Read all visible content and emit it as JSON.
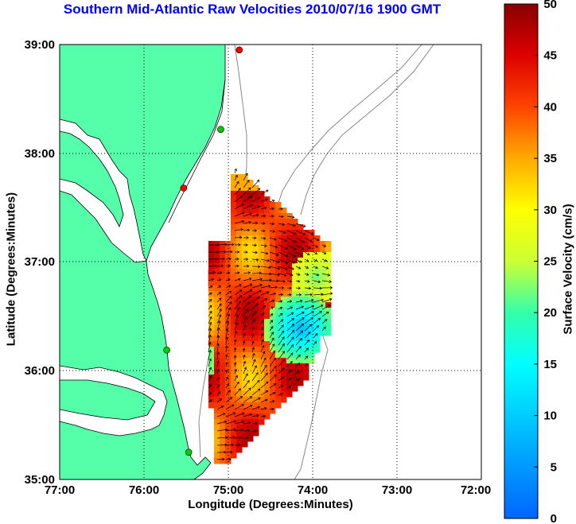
{
  "title": "Southern Mid-Atlantic Raw Velocities 2010/07/16 1900 GMT",
  "xlabel": "Longitude (Degrees:Minutes)",
  "ylabel": "Latitude (Degrees:Minutes)",
  "colorbar": {
    "label": "Surface Velocity (cm/s)",
    "ticks": [
      "0",
      "5",
      "10",
      "15",
      "20",
      "25",
      "30",
      "35",
      "40",
      "45",
      "50"
    ],
    "range": [
      0,
      50
    ]
  },
  "map": {
    "x_ticks": [
      "77:00",
      "76:00",
      "75:00",
      "74:00",
      "73:00",
      "72:00"
    ],
    "y_ticks": [
      "39:00",
      "38:00",
      "37:00",
      "36:00",
      "35:00"
    ],
    "lon_range": [
      -77,
      -72
    ],
    "lat_range": [
      35,
      39
    ],
    "land_color": "#55ffaa",
    "grid": "dotted",
    "stations": [
      {
        "lon": -74.87,
        "lat": 38.95,
        "color": "#ff0000"
      },
      {
        "lon": -75.09,
        "lat": 38.22,
        "color": "#00cc00"
      },
      {
        "lon": -75.53,
        "lat": 37.68,
        "color": "#ff0000"
      },
      {
        "lon": -75.73,
        "lat": 36.19,
        "color": "#00cc00"
      },
      {
        "lon": -75.47,
        "lat": 35.25,
        "color": "#00cc00"
      }
    ]
  }
}
